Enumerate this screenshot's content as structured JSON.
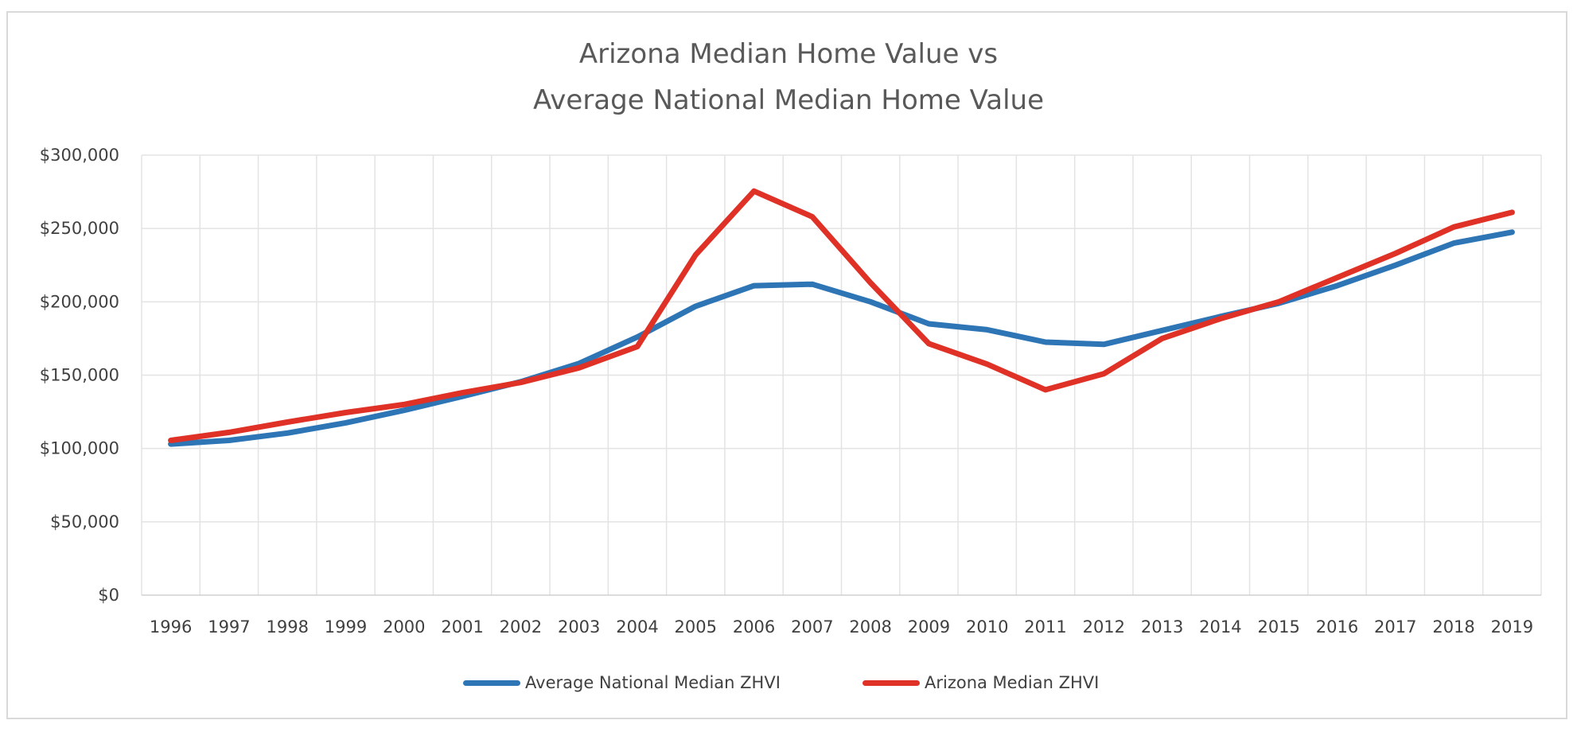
{
  "chart_data": {
    "type": "line",
    "title": "Arizona Median Home Value vs",
    "subtitle": "Average National Median Home Value",
    "xlabel": "",
    "ylabel": "",
    "categories": [
      "1996",
      "1997",
      "1998",
      "1999",
      "2000",
      "2001",
      "2002",
      "2003",
      "2004",
      "2005",
      "2006",
      "2007",
      "2008",
      "2009",
      "2010",
      "2011",
      "2012",
      "2013",
      "2014",
      "2015",
      "2016",
      "2017",
      "2018",
      "2019"
    ],
    "y_ticks": [
      {
        "value": 0,
        "label": "$0"
      },
      {
        "value": 50000,
        "label": "$50,000"
      },
      {
        "value": 100000,
        "label": "$100,000"
      },
      {
        "value": 150000,
        "label": "$150,000"
      },
      {
        "value": 200000,
        "label": "$200,000"
      },
      {
        "value": 250000,
        "label": "$250,000"
      },
      {
        "value": 300000,
        "label": "$300,000"
      }
    ],
    "ylim": [
      0,
      300000
    ],
    "grid": true,
    "legend_position": "bottom",
    "series": [
      {
        "name": "Average National Median ZHVI",
        "color": "#2e75b6",
        "values": [
          103000,
          105500,
          110500,
          117500,
          126000,
          135500,
          145500,
          158000,
          176000,
          197000,
          211000,
          212000,
          200000,
          185000,
          181000,
          172500,
          171000,
          180500,
          190000,
          199000,
          211000,
          225000,
          240000,
          247500
        ]
      },
      {
        "name": "Arizona Median ZHVI",
        "color": "#e03127",
        "values": [
          105500,
          111000,
          118000,
          124500,
          130000,
          138000,
          145000,
          155000,
          169500,
          232000,
          275500,
          258000,
          213000,
          171500,
          157500,
          140000,
          151000,
          175000,
          188500,
          200000,
          216500,
          233000,
          251000,
          261000
        ]
      }
    ]
  }
}
